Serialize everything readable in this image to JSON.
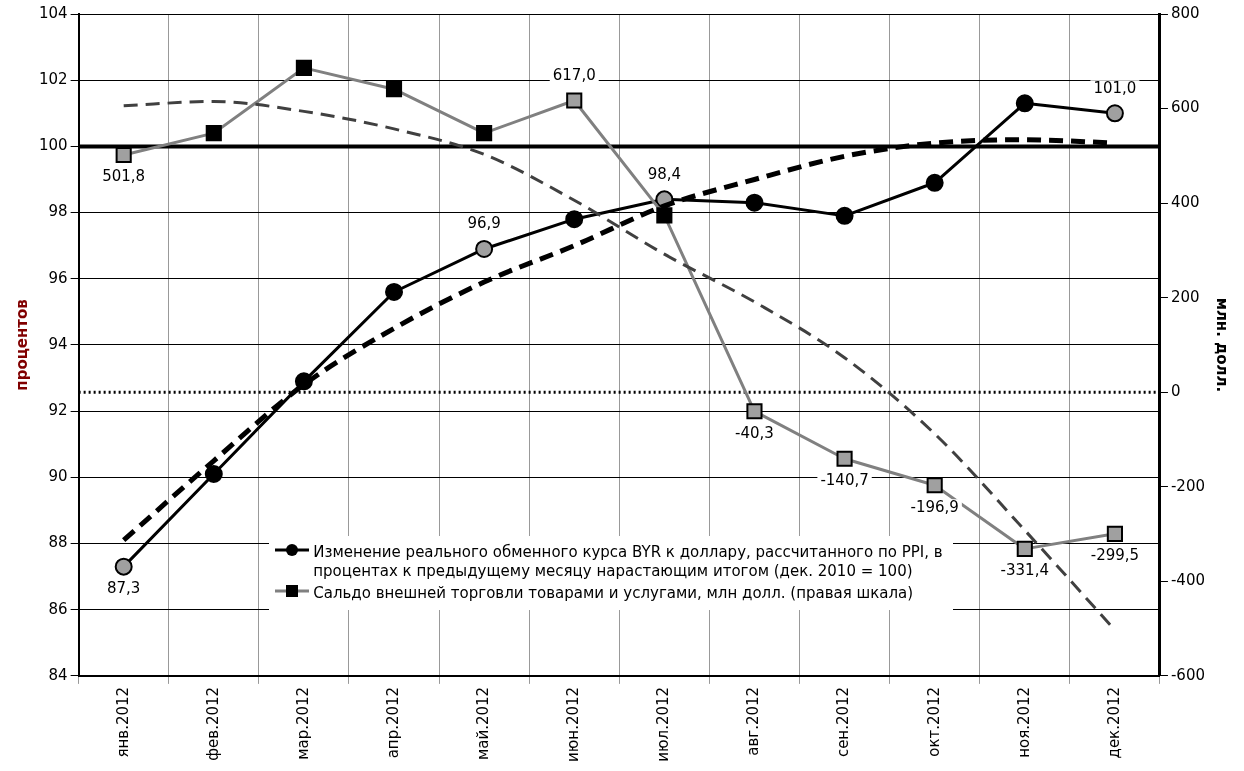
{
  "chart_data": {
    "type": "line",
    "xlabel": null,
    "ylabel": "процентов",
    "y2label": "млн. долл.",
    "categories": [
      "янв.2012",
      "фев.2012",
      "мар.2012",
      "апр.2012",
      "май.2012",
      "июн.2012",
      "июл.2012",
      "авг.2012",
      "сен.2012",
      "окт.2012",
      "ноя.2012",
      "дек.2012"
    ],
    "series": [
      {
        "name": "Изменение реального обменного курса BYR к доллару, рассчитанного по PPI, в процентах к предыдущему месяцу нарастающим итогом (дек. 2010 = 100)",
        "color": "#000000",
        "marker": "circle",
        "colors": [
          "#a0a0a0",
          "#000000",
          "#000000",
          "#000000",
          "#a0a0a0",
          "#000000",
          "#a0a0a0",
          "#000000",
          "#000000",
          "#000000",
          "#000000",
          "#a0a0a0"
        ],
        "values": [
          87.3,
          90.1,
          92.9,
          95.6,
          96.9,
          97.8,
          98.4,
          98.3,
          97.9,
          98.9,
          101.3,
          101.0
        ],
        "value_labels": [
          "87,3",
          null,
          null,
          null,
          "96,9",
          null,
          "98,4",
          null,
          null,
          null,
          null,
          "101,0"
        ]
      },
      {
        "name": "Сальдо внешней торговли товарами и услугами, млн долл. (правая шкала)",
        "color": "#808080",
        "marker": "square",
        "axis": "y2",
        "colors": [
          "#a0a0a0",
          "#000000",
          "#000000",
          "#000000",
          "#000000",
          "#a0a0a0",
          "#000000",
          "#a0a0a0",
          "#a0a0a0",
          "#a0a0a0",
          "#a0a0a0",
          "#a0a0a0"
        ],
        "values": [
          501.8,
          548,
          686,
          641,
          548,
          617.0,
          374,
          -40.3,
          -140.7,
          -196.9,
          -331.4,
          -299.5
        ],
        "value_labels": [
          "501,8",
          null,
          null,
          null,
          null,
          "617,0",
          null,
          "-40,3",
          "-140,7",
          "-196,9",
          "-331,4",
          "-299,5"
        ]
      },
      {
        "type": "line",
        "color": "#000000",
        "marker": "none",
        "line_style": "dashed",
        "values": [
          88.1,
          90.5,
          92.8,
          94.5,
          95.9,
          97.0,
          98.2,
          99.0,
          99.7,
          100.1,
          100.2,
          100.1
        ]
      },
      {
        "type": "line",
        "color": "#404040",
        "marker": "none",
        "line_style": "dashed",
        "axis": "y2",
        "values": [
          606,
          615,
          594,
          557,
          503,
          406,
          292,
          191,
          73,
          -88,
          -292,
          -503
        ]
      }
    ],
    "ylim": [
      84,
      104
    ],
    "yticks": [
      84,
      86,
      88,
      90,
      92,
      94,
      96,
      98,
      100,
      102,
      104
    ],
    "y2lim": [
      -600,
      800
    ],
    "y2ticks": [
      -600,
      -400,
      -200,
      0,
      200,
      400,
      600,
      800
    ],
    "ref_lines": [
      {
        "axis": "y",
        "value": 100,
        "color": "#000000",
        "line_style": "solid"
      },
      {
        "axis": "y2",
        "value": 0,
        "color": "#000000",
        "line_style": "dotted"
      }
    ],
    "grid": true,
    "legend": "bottom"
  }
}
